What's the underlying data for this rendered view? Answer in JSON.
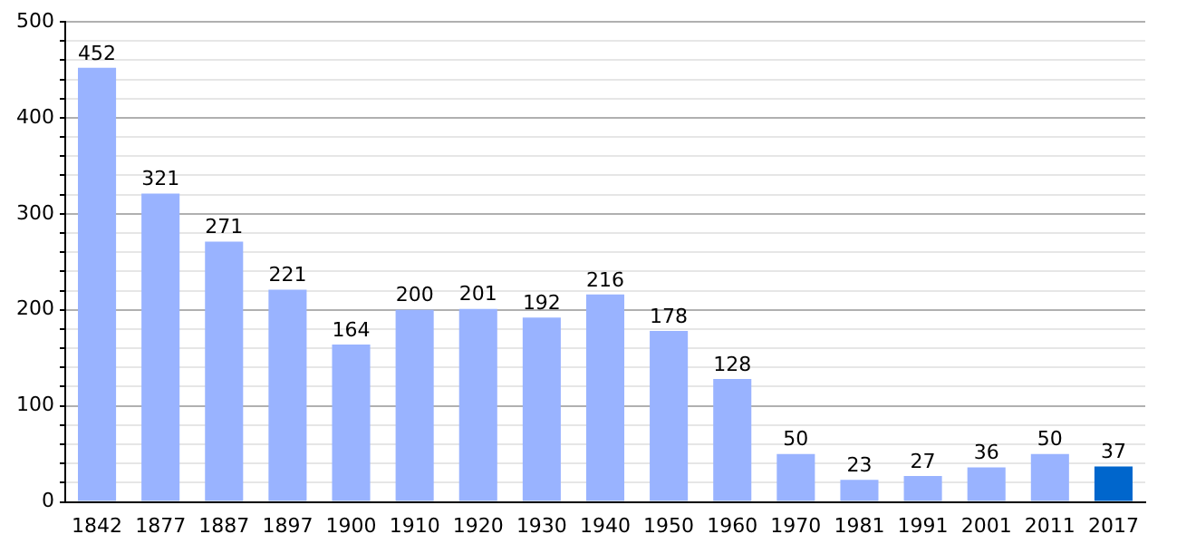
{
  "chart_data": {
    "type": "bar",
    "categories": [
      "1842",
      "1877",
      "1887",
      "1897",
      "1900",
      "1910",
      "1920",
      "1930",
      "1940",
      "1950",
      "1960",
      "1970",
      "1981",
      "1991",
      "2001",
      "2011",
      "2017"
    ],
    "values": [
      452,
      321,
      271,
      221,
      164,
      200,
      201,
      192,
      216,
      178,
      128,
      50,
      23,
      27,
      36,
      50,
      37
    ],
    "colors": [
      "#99b3ff",
      "#99b3ff",
      "#99b3ff",
      "#99b3ff",
      "#99b3ff",
      "#99b3ff",
      "#99b3ff",
      "#99b3ff",
      "#99b3ff",
      "#99b3ff",
      "#99b3ff",
      "#99b3ff",
      "#99b3ff",
      "#99b3ff",
      "#99b3ff",
      "#99b3ff",
      "#0066cc"
    ],
    "ylim": [
      0,
      500
    ],
    "yticks": [
      0,
      {
        "value": 20,
        "label": null
      },
      {
        "value": 40,
        "label": null
      },
      {
        "value": 60,
        "label": null
      },
      {
        "value": 80,
        "label": null
      },
      100,
      {
        "value": 120,
        "label": null
      },
      {
        "value": 140,
        "label": null
      },
      {
        "value": 160,
        "label": null
      },
      {
        "value": 180,
        "label": null
      },
      200,
      {
        "value": 220,
        "label": null
      },
      {
        "value": 240,
        "label": null
      },
      {
        "value": 260,
        "label": null
      },
      {
        "value": 280,
        "label": null
      },
      300,
      {
        "value": 320,
        "label": null
      },
      {
        "value": 340,
        "label": null
      },
      {
        "value": 360,
        "label": null
      },
      {
        "value": 380,
        "label": null
      },
      400,
      {
        "value": 420,
        "label": null
      },
      {
        "value": 440,
        "label": null
      },
      {
        "value": 460,
        "label": null
      },
      {
        "value": 480,
        "label": null
      },
      500
    ],
    "grid": "y",
    "data_labels": true,
    "legend": false
  }
}
